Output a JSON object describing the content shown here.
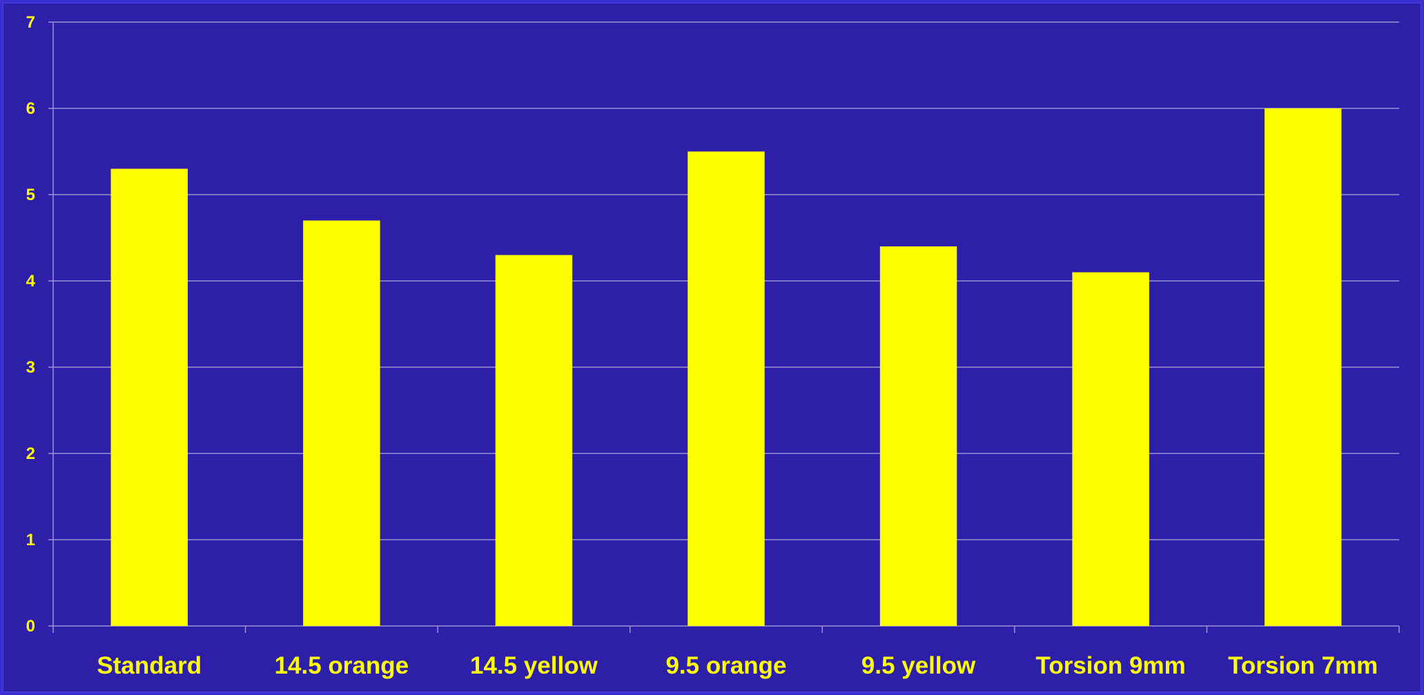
{
  "colors": {
    "background": "#2e1fa8",
    "bar": "#ffff00",
    "grid": "#9a93d6",
    "text": "#ffff00"
  },
  "chart_data": {
    "type": "bar",
    "categories": [
      "Standard",
      "14.5 orange",
      "14.5 yellow",
      "9.5 orange",
      "9.5 yellow",
      "Torsion 9mm",
      "Torsion 7mm"
    ],
    "values": [
      5.3,
      4.7,
      4.3,
      5.5,
      4.4,
      4.1,
      6.0
    ],
    "yticks": [
      "0",
      "1",
      "2",
      "3",
      "4",
      "5",
      "6",
      "7"
    ],
    "ylim": [
      0,
      7
    ],
    "grid": true,
    "legend": "none"
  }
}
